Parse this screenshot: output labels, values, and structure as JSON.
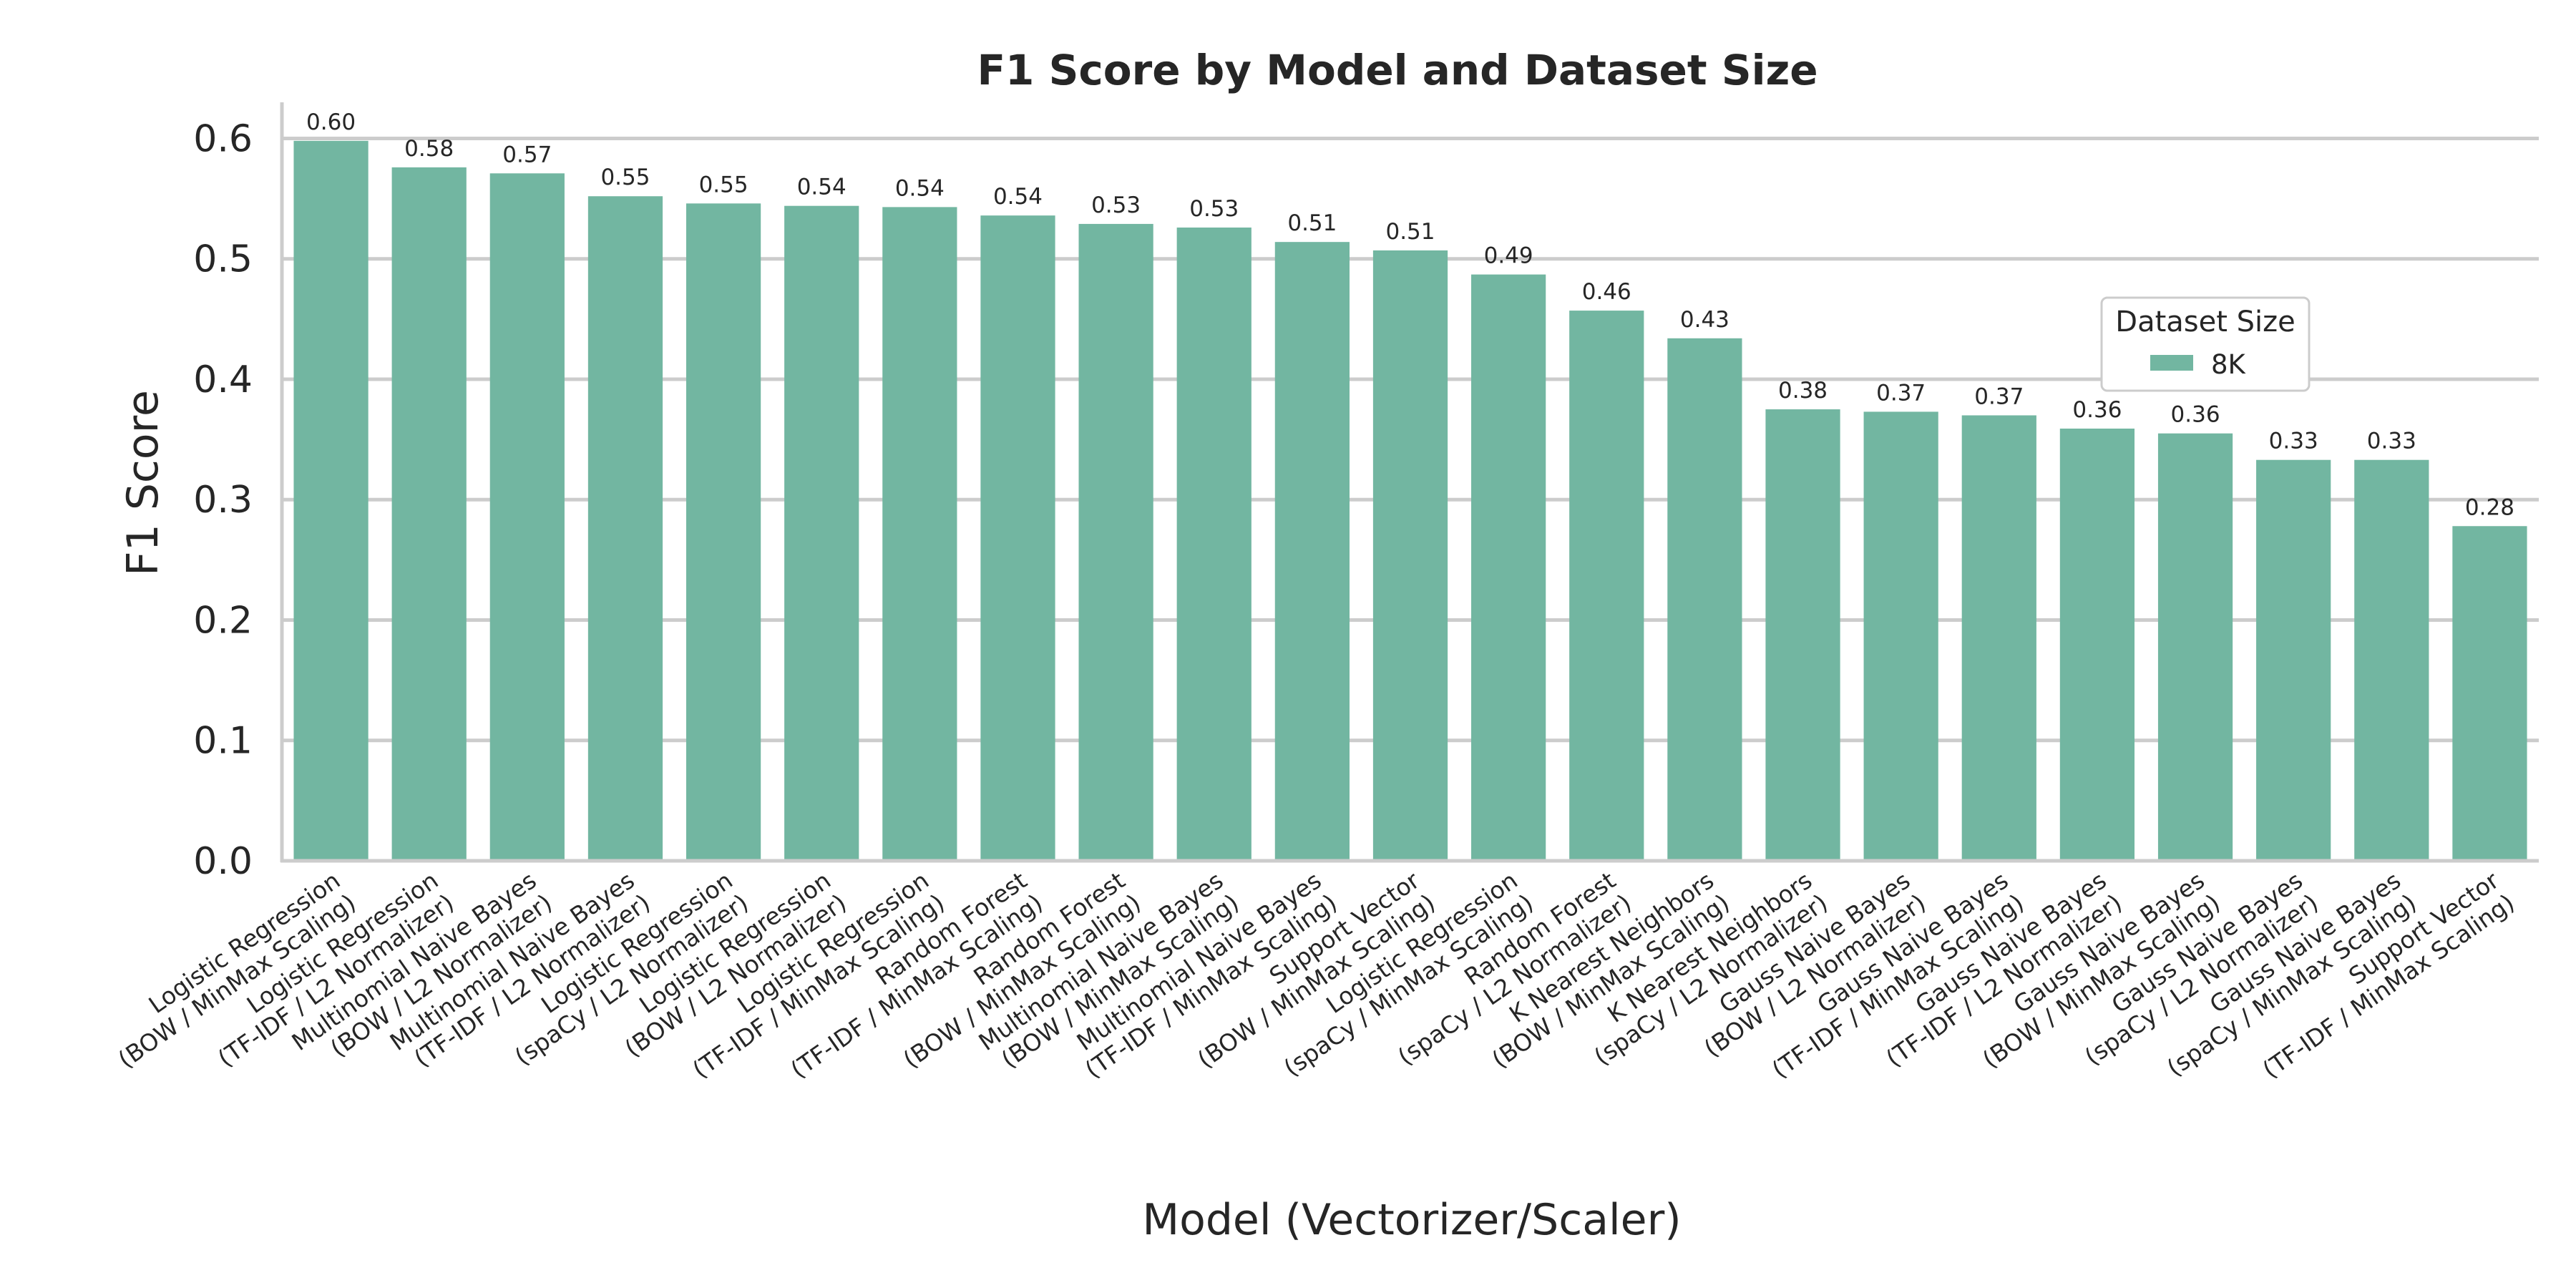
{
  "colors": {
    "bar": "#72b6a1",
    "grid": "#cccccc",
    "axis": "#cccccc",
    "text": "#262626"
  },
  "chart_data": {
    "type": "bar",
    "title": "F1 Score by Model and Dataset Size",
    "xlabel": "Model (Vectorizer/Scaler)",
    "ylabel": "F1 Score",
    "ylim": [
      0,
      0.63
    ],
    "yticks": [
      "0.0",
      "0.1",
      "0.2",
      "0.3",
      "0.4",
      "0.5",
      "0.6"
    ],
    "grid": true,
    "legend": {
      "title": "Dataset Size",
      "placement": "right",
      "entries": [
        "8K"
      ]
    },
    "categories": [
      [
        "Logistic Regression",
        "(BOW / MinMax Scaling)"
      ],
      [
        "Logistic Regression",
        "(TF-IDF / L2 Normalizer)"
      ],
      [
        "Multinomial Naive Bayes",
        "(BOW / L2 Normalizer)"
      ],
      [
        "Multinomial Naive Bayes",
        "(TF-IDF / L2 Normalizer)"
      ],
      [
        "Logistic Regression",
        "(spaCy / L2 Normalizer)"
      ],
      [
        "Logistic Regression",
        "(BOW / L2 Normalizer)"
      ],
      [
        "Logistic Regression",
        "(TF-IDF / MinMax Scaling)"
      ],
      [
        "Random Forest",
        "(TF-IDF / MinMax Scaling)"
      ],
      [
        "Random Forest",
        "(BOW / MinMax Scaling)"
      ],
      [
        "Multinomial Naive Bayes",
        "(BOW / MinMax Scaling)"
      ],
      [
        "Multinomial Naive Bayes",
        "(TF-IDF / MinMax Scaling)"
      ],
      [
        "Support Vector",
        "(BOW / MinMax Scaling)"
      ],
      [
        "Logistic Regression",
        "(spaCy / MinMax Scaling)"
      ],
      [
        "Random Forest",
        "(spaCy / L2 Normalizer)"
      ],
      [
        "K Nearest Neighbors",
        "(BOW / MinMax Scaling)"
      ],
      [
        "K Nearest Neighbors",
        "(spaCy / L2 Normalizer)"
      ],
      [
        "Gauss Naive Bayes",
        "(BOW / L2 Normalizer)"
      ],
      [
        "Gauss Naive Bayes",
        "(TF-IDF / MinMax Scaling)"
      ],
      [
        "Gauss Naive Bayes",
        "(TF-IDF / L2 Normalizer)"
      ],
      [
        "Gauss Naive Bayes",
        "(BOW / MinMax Scaling)"
      ],
      [
        "Gauss Naive Bayes",
        "(spaCy / L2 Normalizer)"
      ],
      [
        "Gauss Naive Bayes",
        "(spaCy / MinMax Scaling)"
      ],
      [
        "Support Vector",
        "(TF-IDF / MinMax Scaling)"
      ]
    ],
    "series": [
      {
        "name": "8K",
        "values": [
          0.598,
          0.576,
          0.571,
          0.552,
          0.546,
          0.544,
          0.543,
          0.536,
          0.529,
          0.526,
          0.514,
          0.507,
          0.487,
          0.457,
          0.434,
          0.375,
          0.373,
          0.37,
          0.359,
          0.355,
          0.333,
          0.333,
          0.278
        ],
        "labels": [
          "0.60",
          "0.58",
          "0.57",
          "0.55",
          "0.55",
          "0.54",
          "0.54",
          "0.54",
          "0.53",
          "0.53",
          "0.51",
          "0.51",
          "0.49",
          "0.46",
          "0.43",
          "0.38",
          "0.37",
          "0.37",
          "0.36",
          "0.36",
          "0.33",
          "0.33",
          "0.28"
        ]
      }
    ]
  }
}
